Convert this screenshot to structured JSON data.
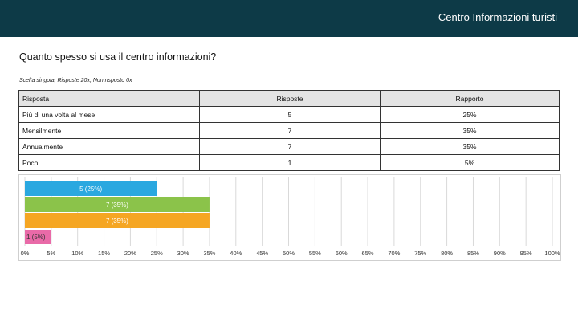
{
  "header": {
    "title": "Centro Informazioni turisti"
  },
  "question": "Quanto spesso si usa il centro informazioni?",
  "meta": "Scelta singola, Risposte 20x, Non risposto 0x",
  "table": {
    "headers": [
      "Risposta",
      "Risposte",
      "Rapporto"
    ],
    "rows": [
      [
        "Più di una volta al mese",
        "5",
        "25%"
      ],
      [
        "Mensilmente",
        "7",
        "35%"
      ],
      [
        "Annualmente",
        "7",
        "35%"
      ],
      [
        "Poco",
        "1",
        "5%"
      ]
    ]
  },
  "chart_data": {
    "type": "bar",
    "orientation": "horizontal",
    "categories": [
      "Più di una volta al mese",
      "Mensilmente",
      "Annualmente",
      "Poco"
    ],
    "values": [
      25,
      35,
      35,
      5
    ],
    "labels": [
      "5 (25%)",
      "7 (35%)",
      "7 (35%)",
      "1 (5%)"
    ],
    "colors": [
      "#2aa8e0",
      "#8bc34a",
      "#f5a623",
      "#e96aa8"
    ],
    "xlim": [
      0,
      100
    ],
    "xticks": [
      "0%",
      "5%",
      "10%",
      "15%",
      "20%",
      "25%",
      "30%",
      "35%",
      "40%",
      "45%",
      "50%",
      "55%",
      "60%",
      "65%",
      "70%",
      "75%",
      "80%",
      "85%",
      "90%",
      "95%",
      "100%"
    ],
    "grid": true
  }
}
